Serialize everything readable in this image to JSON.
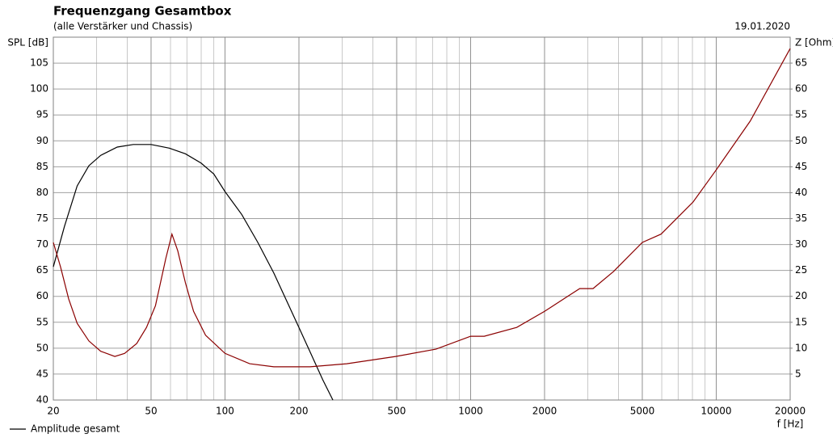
{
  "chart_data": {
    "type": "line",
    "title": "Frequenzgang Gesamtbox",
    "subtitle": "(alle Verstärker und Chassis)",
    "date": "19.01.2020",
    "x_label": "f [Hz]",
    "y_label": "SPL [dB]",
    "y2_label": "Z [Ohm]",
    "xscale": "log",
    "xlim": [
      20,
      20000
    ],
    "xticks": [
      20,
      50,
      100,
      200,
      500,
      1000,
      2000,
      5000,
      10000,
      20000
    ],
    "minor_xticks": [
      30,
      40,
      60,
      70,
      80,
      90,
      300,
      400,
      600,
      700,
      800,
      900,
      3000,
      4000,
      6000,
      7000,
      8000,
      9000
    ],
    "ylim": [
      40,
      110
    ],
    "yticks": [
      40,
      45,
      50,
      55,
      60,
      65,
      70,
      75,
      80,
      85,
      90,
      95,
      100,
      105
    ],
    "y2lim": [
      0,
      70
    ],
    "y2ticks": [
      5,
      10,
      15,
      20,
      25,
      30,
      35,
      40,
      45,
      50,
      55,
      60,
      65
    ],
    "grid": true,
    "legend": "bottom-left",
    "series": [
      {
        "name": "Amplitude gesamt",
        "color": "#000000",
        "x": [
          20,
          22.2,
          25,
          27.9,
          31.2,
          36.4,
          42.3,
          50,
          59.3,
          69,
          80,
          90,
          100,
          117,
          136,
          158,
          200,
          250,
          275
        ],
        "values": [
          65.7,
          73.5,
          81.3,
          85.2,
          87.2,
          88.8,
          89.3,
          89.3,
          88.6,
          87.5,
          85.7,
          83.6,
          80.2,
          75.8,
          70.4,
          64.5,
          54,
          43.9,
          40
        ]
      },
      {
        "color": "#8b0000",
        "axis": "y2",
        "x": [
          20,
          21.4,
          23.1,
          25,
          27.9,
          31.2,
          35.6,
          39,
          43.7,
          47.9,
          52.1,
          57.4,
          60.8,
          64.2,
          69,
          74.5,
          83.3,
          100,
          126,
          158,
          222,
          313,
          495,
          722,
          1000,
          1136,
          1540,
          2000,
          2500,
          2780,
          3150,
          3820,
          5000,
          5960,
          8050,
          10000,
          13750,
          20000
        ],
        "values": [
          30.4,
          25.7,
          19.5,
          14.8,
          11.4,
          9.4,
          8.4,
          9,
          10.9,
          14,
          18.2,
          27.3,
          32,
          28.8,
          22.6,
          17.1,
          12.5,
          9,
          7,
          6.4,
          6.4,
          7,
          8.4,
          9.8,
          12.3,
          12.3,
          14,
          17.1,
          20.1,
          21.5,
          21.5,
          24.8,
          30.4,
          32,
          38.2,
          44.4,
          53.8,
          67.8
        ]
      }
    ]
  }
}
